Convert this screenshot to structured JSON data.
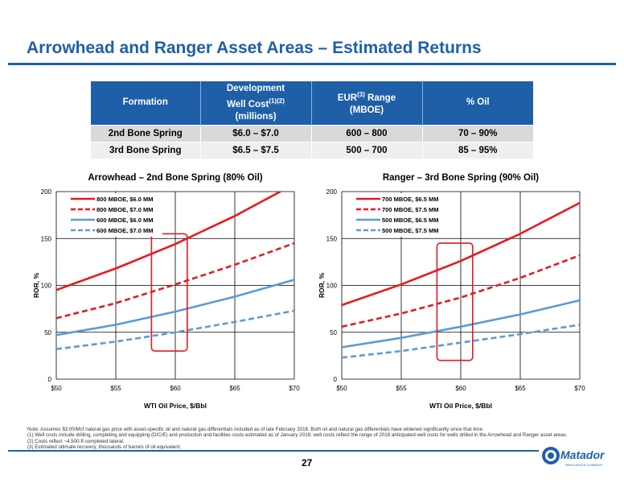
{
  "slide": {
    "title": "Arrowhead and Ranger Asset Areas – Estimated Returns",
    "page_number": "27"
  },
  "table": {
    "headers": {
      "formation": "Formation",
      "cost_line1": "Development",
      "cost_line2": "Well Cost",
      "cost_sup": "(1)(2)",
      "cost_line3": "(millions)",
      "eur_pre": "EUR",
      "eur_sup": "(3)",
      "eur_post": " Range",
      "eur_line2": "(MBOE)",
      "oil": "% Oil"
    },
    "rows": [
      {
        "formation": "2nd Bone Spring",
        "cost": "$6.0 – $7.0",
        "eur": "600 – 800",
        "oil": "70 – 90%"
      },
      {
        "formation": "3rd Bone Spring",
        "cost": "$6.5 – $7.5",
        "eur": "500 – 700",
        "oil": "85 – 95%"
      }
    ]
  },
  "colors": {
    "brand_blue": "#1f5fa8",
    "red": "#e8191f",
    "blue": "#5b9bd5"
  },
  "chart_data": [
    {
      "type": "line",
      "title": "Arrowhead – 2nd Bone Spring (80% Oil)",
      "xlabel": "WTI Oil Price, $/Bbl",
      "ylabel": "ROR, %",
      "xlim": [
        50,
        70
      ],
      "ylim": [
        0,
        200
      ],
      "x_ticks": [
        "$50",
        "$55",
        "$60",
        "$65",
        "$70"
      ],
      "y_ticks": [
        "0",
        "50",
        "100",
        "150",
        "200"
      ],
      "grid": true,
      "legend": "top-left",
      "highlight_box_x": [
        58,
        61
      ],
      "highlight_box_y": [
        30,
        155
      ],
      "x": [
        50,
        55,
        60,
        65,
        70
      ],
      "series": [
        {
          "name": "800 MBOE, $6.0 MM",
          "color": "#e8191f",
          "dash": false,
          "values": [
            95,
            118,
            144,
            174,
            208
          ]
        },
        {
          "name": "800 MBOE, $7.0 MM",
          "color": "#e8191f",
          "dash": true,
          "values": [
            65,
            81,
            101,
            122,
            145
          ]
        },
        {
          "name": "600 MBOE, $6.0 MM",
          "color": "#5b9bd5",
          "dash": false,
          "values": [
            47,
            58,
            72,
            88,
            106
          ]
        },
        {
          "name": "600 MBOE, $7.0 MM",
          "color": "#5b9bd5",
          "dash": true,
          "values": [
            32,
            40,
            50,
            61,
            73
          ]
        }
      ]
    },
    {
      "type": "line",
      "title": "Ranger – 3rd Bone Spring (90% Oil)",
      "xlabel": "WTI Oil Price, $/Bbl",
      "ylabel": "ROR, %",
      "xlim": [
        50,
        70
      ],
      "ylim": [
        0,
        200
      ],
      "x_ticks": [
        "$50",
        "$55",
        "$60",
        "$65",
        "$70"
      ],
      "y_ticks": [
        "0",
        "50",
        "100",
        "150",
        "200"
      ],
      "grid": true,
      "legend": "top-left",
      "highlight_box_x": [
        58,
        61
      ],
      "highlight_box_y": [
        20,
        145
      ],
      "x": [
        50,
        55,
        60,
        65,
        70
      ],
      "series": [
        {
          "name": "700 MBOE, $6.5 MM",
          "color": "#e8191f",
          "dash": false,
          "values": [
            79,
            101,
            126,
            155,
            188
          ]
        },
        {
          "name": "700 MBOE, $7.5 MM",
          "color": "#e8191f",
          "dash": true,
          "values": [
            56,
            70,
            87,
            108,
            132
          ]
        },
        {
          "name": "500 MBOE, $6.5 MM",
          "color": "#5b9bd5",
          "dash": false,
          "values": [
            34,
            44,
            56,
            69,
            84
          ]
        },
        {
          "name": "500 MBOE, $7.5 MM",
          "color": "#5b9bd5",
          "dash": true,
          "values": [
            23,
            30,
            39,
            48,
            58
          ]
        }
      ]
    }
  ],
  "notes": [
    "Note: Assumes $3.00/Mcf natural gas price with asset-specific oil and natural gas differentials included as of late February 2018. Both oil and natural gas differentials have widened significantly since that time.",
    "(1)    Well costs include drilling, completing and equipping (D/C/E) and production and facilities costs estimated as of January 2018; well costs reflect the range of 2018 anticipated well costs for wells drilled in the Arrowhead and Ranger asset areas.",
    "(2)    Costs reflect ~4,500-ft completed lateral.",
    "(3)    Estimated ultimate recovery, thousands of barrels of oil equivalent."
  ],
  "logo": {
    "text": "Matador",
    "subtext": "RESOURCES COMPANY"
  }
}
